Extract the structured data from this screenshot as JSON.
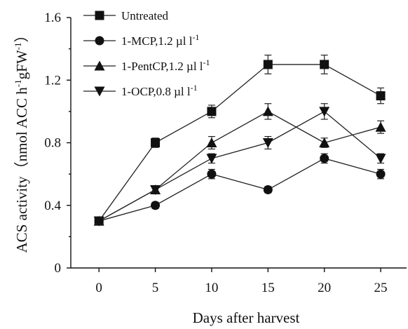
{
  "chart_data": {
    "type": "line",
    "xlabel": "Days after harvest",
    "ylabel_main": "ACS activity（nmol ACC h",
    "ylabel_sup1": "-1",
    "ylabel_mid": "gFW",
    "ylabel_sup2": "-1",
    "ylabel_end": "）",
    "x": [
      0,
      5,
      10,
      15,
      20,
      25
    ],
    "xlim": [
      -2.5,
      27.3
    ],
    "ylim": [
      0,
      1.6
    ],
    "x_ticks": [
      0,
      5,
      10,
      15,
      20,
      25
    ],
    "y_ticks": [
      0,
      0.4,
      0.8,
      1.2,
      1.6
    ],
    "x_tick_labels": [
      "0",
      "5",
      "10",
      "15",
      "20",
      "25"
    ],
    "y_tick_labels": [
      "0",
      "0.4",
      "0.8",
      "1.2",
      "1.6"
    ],
    "grid": false,
    "legend_position": "top-left",
    "series": [
      {
        "name": "Untreated",
        "name_sup": "",
        "marker": "square",
        "values": [
          0.3,
          0.8,
          1.0,
          1.3,
          1.3,
          1.1
        ],
        "errors": [
          0.02,
          0.03,
          0.04,
          0.06,
          0.06,
          0.05
        ]
      },
      {
        "name": "1-MCP,1.2 µl l",
        "name_sup": "-1",
        "marker": "circle",
        "values": [
          0.3,
          0.4,
          0.6,
          0.5,
          0.7,
          0.6
        ],
        "errors": [
          0.02,
          0.02,
          0.03,
          0.02,
          0.03,
          0.03
        ]
      },
      {
        "name": "1-PentCP,1.2 µl l",
        "name_sup": "-1",
        "marker": "triangle-up",
        "values": [
          0.3,
          0.5,
          0.8,
          1.0,
          0.8,
          0.9
        ],
        "errors": [
          0.02,
          0.02,
          0.04,
          0.05,
          0.03,
          0.04
        ]
      },
      {
        "name": "1-OCP,0.8 µl l",
        "name_sup": "-1",
        "marker": "triangle-down",
        "values": [
          0.3,
          0.5,
          0.7,
          0.8,
          1.0,
          0.7
        ],
        "errors": [
          0.02,
          0.02,
          0.03,
          0.04,
          0.05,
          0.03
        ]
      }
    ]
  }
}
